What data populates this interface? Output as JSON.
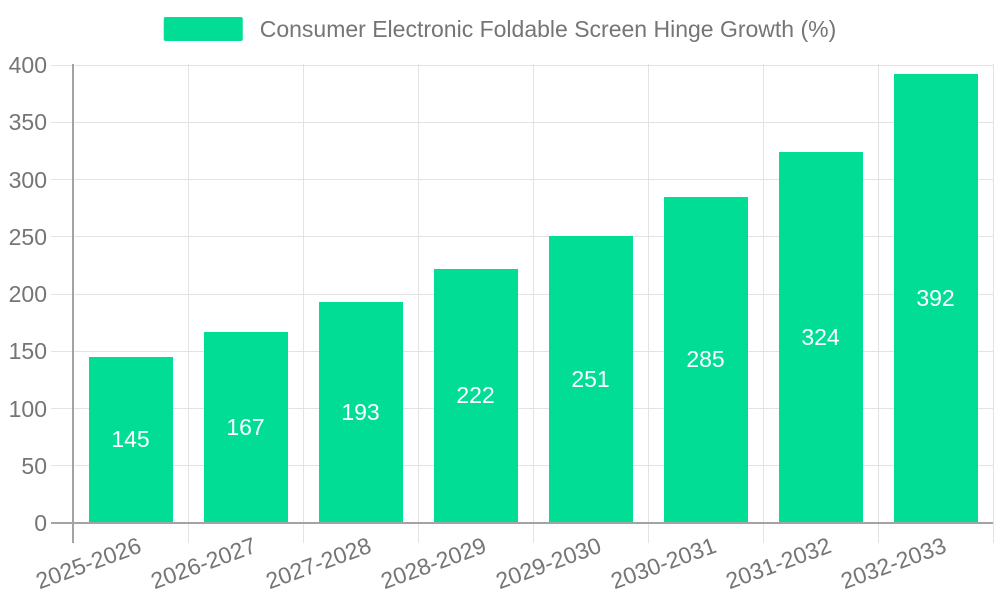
{
  "chart_data": {
    "type": "bar",
    "title": "Consumer Electronic Foldable Screen Hinge Growth (%)",
    "legend": {
      "label": "Consumer Electronic Foldable Screen Hinge Growth (%)",
      "position": "top-center"
    },
    "categories": [
      "2025-2026",
      "2026-2027",
      "2027-2028",
      "2028-2029",
      "2029-2030",
      "2030-2031",
      "2031-2032",
      "2032-2033"
    ],
    "values": [
      145,
      167,
      193,
      222,
      251,
      285,
      324,
      392
    ],
    "xlabel": "",
    "ylabel": "",
    "ylim": [
      0,
      400
    ],
    "yticks": [
      0,
      50,
      100,
      150,
      200,
      250,
      300,
      350,
      400
    ],
    "grid": true,
    "xlabel_rotation_deg": 20,
    "value_labels_position": "inside-center",
    "colors": {
      "bar": "#01DD94",
      "value_label": "#ffffff",
      "tick_label": "#757575",
      "legend_text": "#757575",
      "axis_line": "#a3a3a3",
      "gridline": "#e3e3e3",
      "background": "#ffffff"
    }
  }
}
